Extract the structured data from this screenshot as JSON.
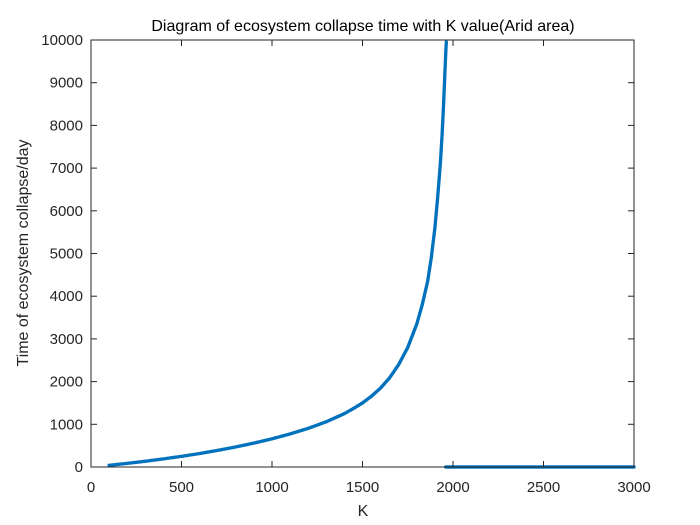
{
  "chart_data": {
    "type": "scatter",
    "title": "Diagram of ecosystem collapse time with K value(Arid area)",
    "xlabel": "K",
    "ylabel": "Time of ecosystem collapse/day",
    "xlim": [
      0,
      3000
    ],
    "ylim": [
      0,
      10000
    ],
    "xticks": [
      "0",
      "500",
      "1000",
      "1500",
      "2000",
      "2500",
      "3000"
    ],
    "yticks": [
      "0",
      "1000",
      "2000",
      "3000",
      "4000",
      "5000",
      "6000",
      "7000",
      "8000",
      "9000",
      "10000"
    ],
    "grid": false,
    "box": true,
    "marker": "dot",
    "series": [
      {
        "color": "#0072BD",
        "points": [
          [
            100,
            40
          ],
          [
            200,
            85
          ],
          [
            300,
            135
          ],
          [
            400,
            190
          ],
          [
            500,
            250
          ],
          [
            600,
            315
          ],
          [
            700,
            390
          ],
          [
            800,
            470
          ],
          [
            900,
            560
          ],
          [
            1000,
            660
          ],
          [
            1100,
            775
          ],
          [
            1200,
            905
          ],
          [
            1300,
            1060
          ],
          [
            1400,
            1250
          ],
          [
            1450,
            1370
          ],
          [
            1500,
            1500
          ],
          [
            1550,
            1660
          ],
          [
            1600,
            1850
          ],
          [
            1650,
            2090
          ],
          [
            1700,
            2400
          ],
          [
            1750,
            2800
          ],
          [
            1800,
            3350
          ],
          [
            1830,
            3800
          ],
          [
            1860,
            4350
          ],
          [
            1880,
            4900
          ],
          [
            1900,
            5600
          ],
          [
            1915,
            6300
          ],
          [
            1930,
            7100
          ],
          [
            1940,
            7800
          ],
          [
            1948,
            8500
          ],
          [
            1955,
            9200
          ],
          [
            1960,
            9700
          ],
          [
            1963,
            9950
          ],
          [
            1960,
            0
          ],
          [
            2000,
            0
          ],
          [
            2100,
            0
          ],
          [
            2200,
            0
          ],
          [
            2300,
            0
          ],
          [
            2400,
            0
          ],
          [
            2500,
            0
          ],
          [
            2600,
            0
          ],
          [
            2700,
            0
          ],
          [
            2800,
            0
          ],
          [
            2900,
            0
          ],
          [
            3000,
            0
          ]
        ]
      }
    ]
  }
}
